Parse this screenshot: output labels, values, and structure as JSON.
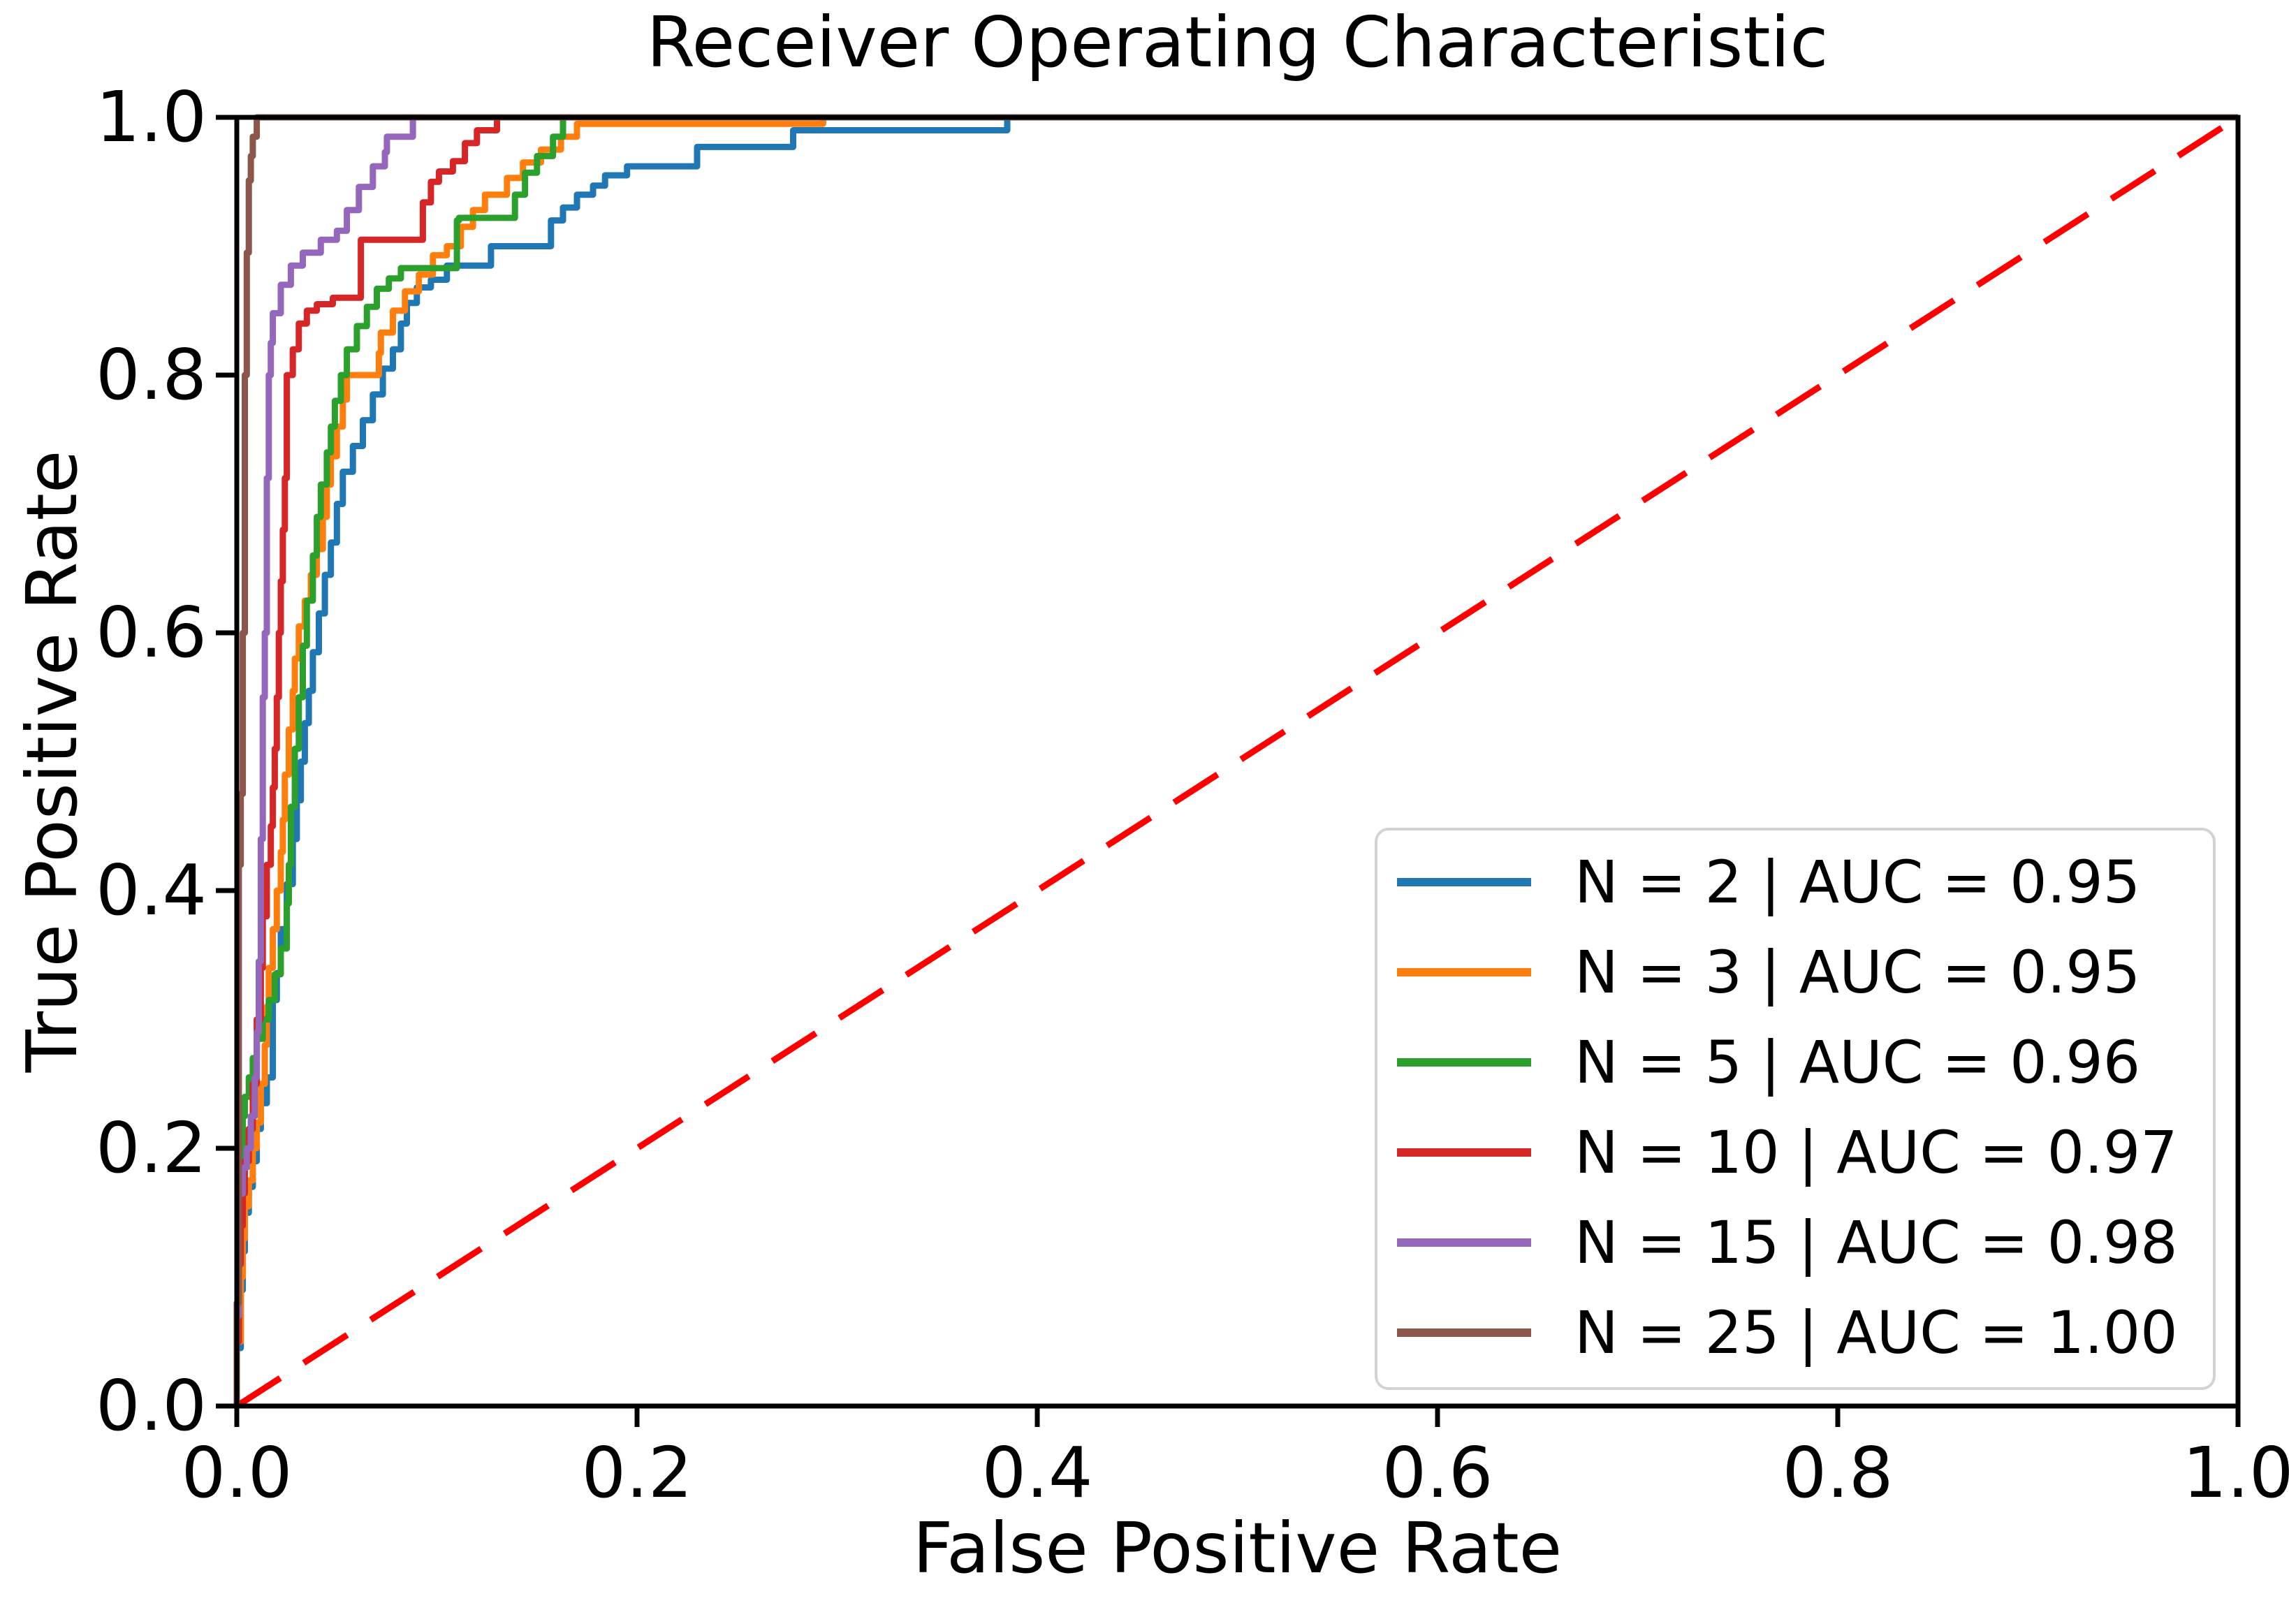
{
  "title": "Receiver Operating Characteristic",
  "axes": {
    "xlabel": "False Positive Rate",
    "ylabel": "True Positive Rate"
  },
  "chart_data": {
    "type": "line",
    "subtype": "roc-step-curves",
    "title": "Receiver Operating Characteristic",
    "xlabel": "False Positive Rate",
    "ylabel": "True Positive Rate",
    "xlim": [
      0.0,
      1.0
    ],
    "ylim": [
      0.0,
      1.0
    ],
    "grid": false,
    "legend_position": "lower right",
    "frame_color": "#000000",
    "xticks": [
      {
        "v": 0.0,
        "label": "0.0"
      },
      {
        "v": 0.2,
        "label": "0.2"
      },
      {
        "v": 0.4,
        "label": "0.4"
      },
      {
        "v": 0.6,
        "label": "0.6"
      },
      {
        "v": 0.8,
        "label": "0.8"
      },
      {
        "v": 1.0,
        "label": "1.0"
      }
    ],
    "yticks": [
      {
        "v": 0.0,
        "label": "0.0"
      },
      {
        "v": 0.2,
        "label": "0.2"
      },
      {
        "v": 0.4,
        "label": "0.4"
      },
      {
        "v": 0.6,
        "label": "0.6"
      },
      {
        "v": 0.8,
        "label": "0.8"
      },
      {
        "v": 1.0,
        "label": "1.0"
      }
    ],
    "reference_line": {
      "name": "chance-diagonal",
      "style": "dashed",
      "color": "#ff0000",
      "points": [
        [
          0,
          0
        ],
        [
          1,
          1
        ]
      ]
    },
    "series": [
      {
        "name": "N = 2 | AUC = 0.95",
        "n": 2,
        "auc": "0.95",
        "color": "#1f77b4",
        "points": [
          [
            0,
            0
          ],
          [
            0.002,
            0.045
          ],
          [
            0.003,
            0.09
          ],
          [
            0.004,
            0.12
          ],
          [
            0.006,
            0.15
          ],
          [
            0.008,
            0.17
          ],
          [
            0.01,
            0.19
          ],
          [
            0.012,
            0.215
          ],
          [
            0.015,
            0.235
          ],
          [
            0.018,
            0.255
          ],
          [
            0.018,
            0.29
          ],
          [
            0.02,
            0.315
          ],
          [
            0.022,
            0.336
          ],
          [
            0.025,
            0.37
          ],
          [
            0.028,
            0.405
          ],
          [
            0.03,
            0.44
          ],
          [
            0.032,
            0.47
          ],
          [
            0.034,
            0.5
          ],
          [
            0.036,
            0.53
          ],
          [
            0.038,
            0.555
          ],
          [
            0.041,
            0.585
          ],
          [
            0.044,
            0.615
          ],
          [
            0.047,
            0.645
          ],
          [
            0.05,
            0.67
          ],
          [
            0.053,
            0.7
          ],
          [
            0.058,
            0.725
          ],
          [
            0.063,
            0.745
          ],
          [
            0.068,
            0.765
          ],
          [
            0.073,
            0.785
          ],
          [
            0.078,
            0.805
          ],
          [
            0.082,
            0.82
          ],
          [
            0.085,
            0.84
          ],
          [
            0.09,
            0.856
          ],
          [
            0.097,
            0.868
          ],
          [
            0.105,
            0.874
          ],
          [
            0.113,
            0.885
          ],
          [
            0.127,
            0.885
          ],
          [
            0.128,
            0.9
          ],
          [
            0.157,
            0.9
          ],
          [
            0.163,
            0.92
          ],
          [
            0.17,
            0.93
          ],
          [
            0.178,
            0.94
          ],
          [
            0.184,
            0.947
          ],
          [
            0.195,
            0.955
          ],
          [
            0.202,
            0.962
          ],
          [
            0.23,
            0.962
          ],
          [
            0.232,
            0.977
          ],
          [
            0.278,
            0.977
          ],
          [
            0.297,
            0.99
          ],
          [
            0.385,
            0.99
          ],
          [
            0.388,
            1.0
          ],
          [
            1,
            1
          ]
        ]
      },
      {
        "name": "N = 3 | AUC = 0.95",
        "n": 3,
        "auc": "0.95",
        "color": "#ff7f0e",
        "points": [
          [
            0,
            0
          ],
          [
            0.002,
            0.05
          ],
          [
            0.003,
            0.1
          ],
          [
            0.004,
            0.13
          ],
          [
            0.006,
            0.155
          ],
          [
            0.008,
            0.175
          ],
          [
            0.01,
            0.2
          ],
          [
            0.012,
            0.22
          ],
          [
            0.014,
            0.25
          ],
          [
            0.015,
            0.28
          ],
          [
            0.016,
            0.31
          ],
          [
            0.018,
            0.34
          ],
          [
            0.02,
            0.37
          ],
          [
            0.022,
            0.4
          ],
          [
            0.023,
            0.43
          ],
          [
            0.024,
            0.455
          ],
          [
            0.026,
            0.49
          ],
          [
            0.028,
            0.525
          ],
          [
            0.029,
            0.555
          ],
          [
            0.031,
            0.58
          ],
          [
            0.034,
            0.605
          ],
          [
            0.037,
            0.625
          ],
          [
            0.04,
            0.645
          ],
          [
            0.043,
            0.665
          ],
          [
            0.045,
            0.69
          ],
          [
            0.047,
            0.715
          ],
          [
            0.05,
            0.737
          ],
          [
            0.053,
            0.76
          ],
          [
            0.055,
            0.781
          ],
          [
            0.056,
            0.8
          ],
          [
            0.071,
            0.8
          ],
          [
            0.072,
            0.817
          ],
          [
            0.078,
            0.833
          ],
          [
            0.084,
            0.85
          ],
          [
            0.091,
            0.865
          ],
          [
            0.098,
            0.878
          ],
          [
            0.105,
            0.893
          ],
          [
            0.112,
            0.9
          ],
          [
            0.118,
            0.915
          ],
          [
            0.124,
            0.928
          ],
          [
            0.135,
            0.94
          ],
          [
            0.143,
            0.953
          ],
          [
            0.152,
            0.965
          ],
          [
            0.162,
            0.975
          ],
          [
            0.17,
            0.985
          ],
          [
            0.178,
            0.995
          ],
          [
            0.293,
            0.995
          ],
          [
            0.296,
            1.0
          ],
          [
            1,
            1
          ]
        ]
      },
      {
        "name": "N = 5 | AUC = 0.96",
        "n": 5,
        "auc": "0.96",
        "color": "#2ca02c",
        "points": [
          [
            0,
            0
          ],
          [
            0.001,
            0.06
          ],
          [
            0.001,
            0.12
          ],
          [
            0.002,
            0.16
          ],
          [
            0.003,
            0.19
          ],
          [
            0.004,
            0.225
          ],
          [
            0.006,
            0.24
          ],
          [
            0.008,
            0.255
          ],
          [
            0.01,
            0.27
          ],
          [
            0.013,
            0.285
          ],
          [
            0.016,
            0.3
          ],
          [
            0.019,
            0.315
          ],
          [
            0.022,
            0.335
          ],
          [
            0.025,
            0.355
          ],
          [
            0.026,
            0.39
          ],
          [
            0.027,
            0.42
          ],
          [
            0.029,
            0.465
          ],
          [
            0.031,
            0.51
          ],
          [
            0.033,
            0.55
          ],
          [
            0.035,
            0.59
          ],
          [
            0.038,
            0.625
          ],
          [
            0.04,
            0.66
          ],
          [
            0.042,
            0.69
          ],
          [
            0.045,
            0.715
          ],
          [
            0.047,
            0.74
          ],
          [
            0.049,
            0.76
          ],
          [
            0.052,
            0.78
          ],
          [
            0.055,
            0.8
          ],
          [
            0.06,
            0.82
          ],
          [
            0.065,
            0.838
          ],
          [
            0.07,
            0.853
          ],
          [
            0.076,
            0.867
          ],
          [
            0.082,
            0.875
          ],
          [
            0.088,
            0.883
          ],
          [
            0.11,
            0.883
          ],
          [
            0.111,
            0.92
          ],
          [
            0.139,
            0.922
          ],
          [
            0.144,
            0.94
          ],
          [
            0.15,
            0.957
          ],
          [
            0.158,
            0.97
          ],
          [
            0.163,
            0.985
          ],
          [
            0.166,
            1.0
          ],
          [
            1,
            1
          ]
        ]
      },
      {
        "name": "N = 10 | AUC = 0.97",
        "n": 10,
        "auc": "0.97",
        "color": "#d62728",
        "points": [
          [
            0,
            0
          ],
          [
            0.001,
            0.05
          ],
          [
            0.002,
            0.11
          ],
          [
            0.003,
            0.14
          ],
          [
            0.004,
            0.165
          ],
          [
            0.006,
            0.19
          ],
          [
            0.008,
            0.215
          ],
          [
            0.01,
            0.25
          ],
          [
            0.012,
            0.3
          ],
          [
            0.013,
            0.34
          ],
          [
            0.015,
            0.38
          ],
          [
            0.017,
            0.42
          ],
          [
            0.018,
            0.45
          ],
          [
            0.019,
            0.48
          ],
          [
            0.02,
            0.51
          ],
          [
            0.021,
            0.55
          ],
          [
            0.022,
            0.6
          ],
          [
            0.023,
            0.64
          ],
          [
            0.024,
            0.68
          ],
          [
            0.025,
            0.72
          ],
          [
            0.025,
            0.775
          ],
          [
            0.028,
            0.8
          ],
          [
            0.031,
            0.82
          ],
          [
            0.035,
            0.84
          ],
          [
            0.04,
            0.85
          ],
          [
            0.048,
            0.855
          ],
          [
            0.062,
            0.86
          ],
          [
            0.062,
            0.885
          ],
          [
            0.067,
            0.905
          ],
          [
            0.093,
            0.905
          ],
          [
            0.097,
            0.934
          ],
          [
            0.101,
            0.95
          ],
          [
            0.108,
            0.958
          ],
          [
            0.114,
            0.966
          ],
          [
            0.12,
            0.98
          ],
          [
            0.13,
            0.99
          ],
          [
            0.135,
            1.0
          ],
          [
            1,
            1
          ]
        ]
      },
      {
        "name": "N = 15 | AUC = 0.98",
        "n": 15,
        "auc": "0.98",
        "color": "#9467bd",
        "points": [
          [
            0,
            0
          ],
          [
            0.001,
            0.07
          ],
          [
            0.001,
            0.145
          ],
          [
            0.003,
            0.165
          ],
          [
            0.005,
            0.185
          ],
          [
            0.007,
            0.2
          ],
          [
            0.009,
            0.225
          ],
          [
            0.01,
            0.255
          ],
          [
            0.011,
            0.29
          ],
          [
            0.012,
            0.345
          ],
          [
            0.012,
            0.4
          ],
          [
            0.013,
            0.44
          ],
          [
            0.013,
            0.5
          ],
          [
            0.014,
            0.55
          ],
          [
            0.015,
            0.6
          ],
          [
            0.015,
            0.66
          ],
          [
            0.016,
            0.72
          ],
          [
            0.016,
            0.77
          ],
          [
            0.017,
            0.8
          ],
          [
            0.018,
            0.825
          ],
          [
            0.022,
            0.848
          ],
          [
            0.027,
            0.87
          ],
          [
            0.033,
            0.885
          ],
          [
            0.042,
            0.895
          ],
          [
            0.05,
            0.905
          ],
          [
            0.055,
            0.912
          ],
          [
            0.061,
            0.928
          ],
          [
            0.068,
            0.946
          ],
          [
            0.074,
            0.962
          ],
          [
            0.075,
            0.973
          ],
          [
            0.088,
            0.985
          ],
          [
            0.093,
            1.0
          ],
          [
            1,
            1
          ]
        ]
      },
      {
        "name": "N = 25 | AUC = 1.00",
        "n": 25,
        "auc": "1.00",
        "color": "#8c564b",
        "points": [
          [
            0,
            0
          ],
          [
            0.001,
            0.08
          ],
          [
            0.001,
            0.22
          ],
          [
            0.001,
            0.33
          ],
          [
            0.002,
            0.42
          ],
          [
            0.003,
            0.475
          ],
          [
            0.003,
            0.53
          ],
          [
            0.004,
            0.6
          ],
          [
            0.004,
            0.7
          ],
          [
            0.004,
            0.755
          ],
          [
            0.005,
            0.8
          ],
          [
            0.005,
            0.86
          ],
          [
            0.006,
            0.895
          ],
          [
            0.006,
            0.93
          ],
          [
            0.007,
            0.951
          ],
          [
            0.008,
            0.97
          ],
          [
            0.01,
            0.985
          ],
          [
            0.011,
            1.0
          ],
          [
            1,
            1
          ]
        ]
      }
    ]
  }
}
